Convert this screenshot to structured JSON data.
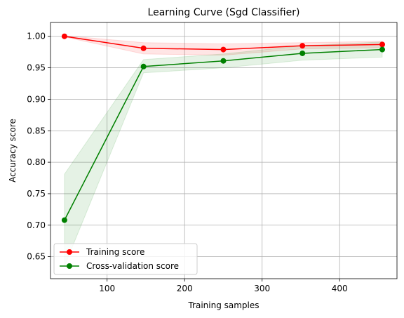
{
  "chart_data": {
    "type": "line",
    "title": "Learning Curve (Sgd Classifier)",
    "xlabel": "Training samples",
    "ylabel": "Accuracy score",
    "xlim": [
      27,
      474
    ],
    "ylim": [
      0.615,
      1.022
    ],
    "xticks": [
      100,
      200,
      300,
      400
    ],
    "yticks": [
      0.65,
      0.7,
      0.75,
      0.8,
      0.85,
      0.9,
      0.95,
      1.0
    ],
    "grid": true,
    "legend_position": "lower-left",
    "x": [
      45,
      147,
      250,
      352,
      455
    ],
    "series": [
      {
        "name": "Training score",
        "color": "#ff0000",
        "values": [
          1.0,
          0.981,
          0.979,
          0.985,
          0.987
        ],
        "band_lower": [
          0.999,
          0.972,
          0.97,
          0.98,
          0.982
        ],
        "band_upper": [
          1.001,
          0.99,
          0.988,
          0.99,
          0.992
        ]
      },
      {
        "name": "Cross-validation score",
        "color": "#008000",
        "values": [
          0.708,
          0.952,
          0.961,
          0.973,
          0.979
        ],
        "band_lower": [
          0.635,
          0.942,
          0.95,
          0.962,
          0.967
        ],
        "band_upper": [
          0.781,
          0.963,
          0.972,
          0.985,
          0.991
        ]
      }
    ]
  }
}
